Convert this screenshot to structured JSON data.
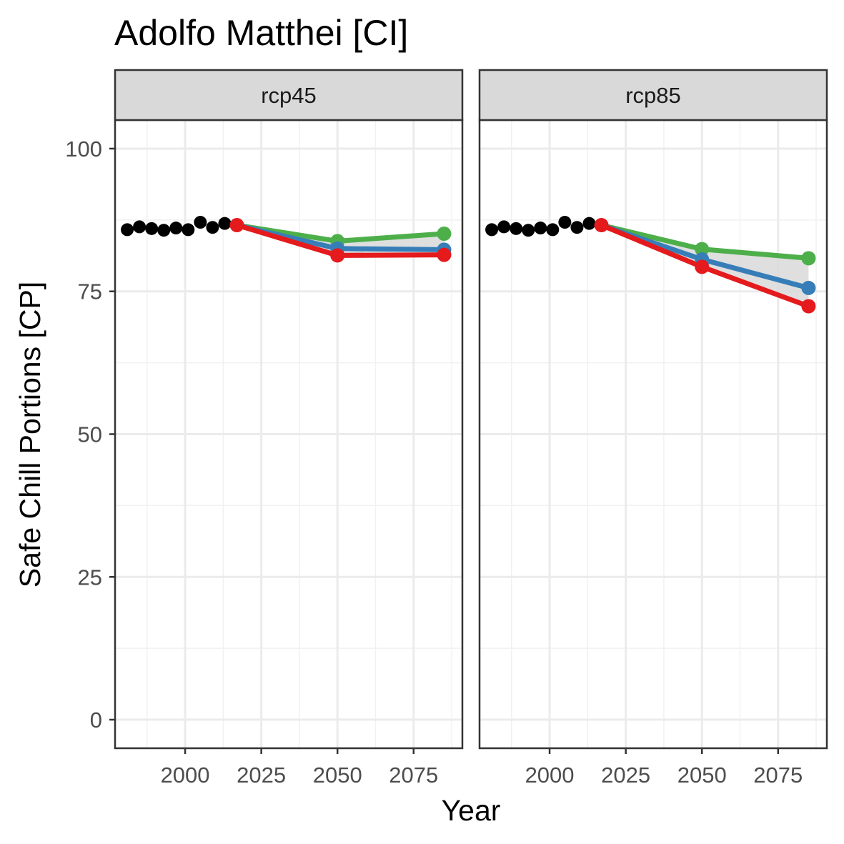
{
  "chart_data": {
    "type": "line",
    "title": "Adolfo Matthei [CI]",
    "xlabel": "Year",
    "ylabel": "Safe Chill Portions [CP]",
    "xlim": [
      1977,
      2091
    ],
    "ylim": [
      -5,
      105
    ],
    "x_ticks": [
      2000,
      2025,
      2050,
      2075
    ],
    "y_ticks": [
      0,
      25,
      50,
      75,
      100
    ],
    "grid": true,
    "legend": "none",
    "colors": {
      "historic": "#000000",
      "green": "#4DAF4A",
      "blue": "#377EB8",
      "red": "#E41A1C",
      "band": "#D9D9D9"
    },
    "panels": [
      {
        "label": "rcp45",
        "historic": {
          "x": [
            1981,
            1985,
            1989,
            1993,
            1997,
            2001,
            2005,
            2009,
            2013
          ],
          "y": [
            85.8,
            86.3,
            86.0,
            85.7,
            86.1,
            85.8,
            87.1,
            86.2,
            86.9
          ]
        },
        "start": {
          "x": 2017,
          "y": 86.6
        },
        "series": [
          {
            "color": "green",
            "x": [
              2050,
              2085
            ],
            "y": [
              83.8,
              85.1
            ]
          },
          {
            "color": "blue",
            "x": [
              2050,
              2085
            ],
            "y": [
              82.5,
              82.3
            ]
          },
          {
            "color": "red",
            "x": [
              2050,
              2085
            ],
            "y": [
              81.3,
              81.4
            ]
          }
        ]
      },
      {
        "label": "rcp85",
        "historic": {
          "x": [
            1981,
            1985,
            1989,
            1993,
            1997,
            2001,
            2005,
            2009,
            2013
          ],
          "y": [
            85.8,
            86.3,
            86.0,
            85.7,
            86.1,
            85.8,
            87.1,
            86.2,
            86.9
          ]
        },
        "start": {
          "x": 2017,
          "y": 86.6
        },
        "series": [
          {
            "color": "green",
            "x": [
              2050,
              2085
            ],
            "y": [
              82.4,
              80.8
            ]
          },
          {
            "color": "blue",
            "x": [
              2050,
              2085
            ],
            "y": [
              80.6,
              75.6
            ]
          },
          {
            "color": "red",
            "x": [
              2050,
              2085
            ],
            "y": [
              79.3,
              72.4
            ]
          }
        ]
      }
    ]
  }
}
